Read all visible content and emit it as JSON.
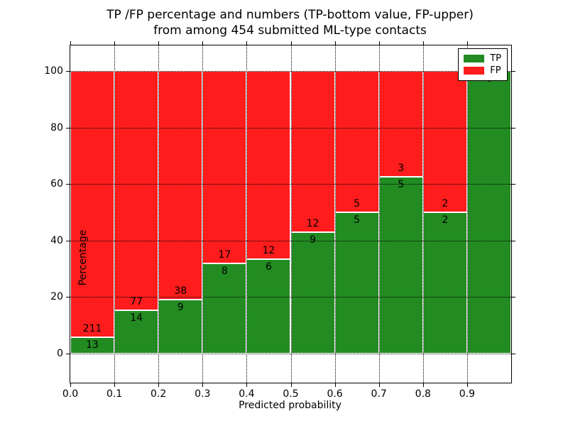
{
  "figure": {
    "title_line1": "TP /FP percentage and numbers (TP-bottom value, FP-upper)",
    "title_line2": "from among 454 submitted ML-type contacts"
  },
  "chart_data": {
    "type": "bar",
    "stacked": true,
    "units": "percent of bin total",
    "title": "TP /FP percentage and numbers (TP-bottom value, FP-upper)\nfrom among 454 submitted ML-type contacts",
    "xlabel": "Predicted probability",
    "ylabel": "Percentage",
    "total_contacts": 454,
    "categories": [
      "0.0-0.1",
      "0.1-0.2",
      "0.2-0.3",
      "0.3-0.4",
      "0.4-0.5",
      "0.5-0.6",
      "0.6-0.7",
      "0.7-0.8",
      "0.8-0.9",
      "0.9-1.0"
    ],
    "bin_width": 0.1,
    "series": [
      {
        "name": "TP",
        "color": "#228b22",
        "counts": [
          13,
          14,
          9,
          8,
          6,
          9,
          5,
          5,
          2,
          6
        ],
        "pct": [
          5.8,
          15.38,
          19.15,
          32.0,
          33.33,
          42.86,
          50.0,
          62.5,
          50.0,
          100.0
        ]
      },
      {
        "name": "FP",
        "color": "#ff1c1c",
        "counts": [
          211,
          77,
          38,
          17,
          12,
          12,
          5,
          3,
          2,
          0
        ],
        "pct": [
          94.2,
          84.62,
          80.85,
          68.0,
          66.67,
          57.14,
          50.0,
          37.5,
          50.0,
          0.0
        ]
      }
    ],
    "label_note": "TP count printed below TP/FP boundary, FP count printed above it",
    "xlim": [
      0.0,
      1.0
    ],
    "ylim": [
      -10.3,
      109.0
    ],
    "xticks": [
      0.0,
      0.1,
      0.2,
      0.3,
      0.4,
      0.5,
      0.6,
      0.7,
      0.8,
      0.9
    ],
    "xtick_labels": [
      "0.0",
      "0.1",
      "0.2",
      "0.3",
      "0.4",
      "0.5",
      "0.6",
      "0.7",
      "0.8",
      "0.9"
    ],
    "yticks": [
      0,
      20,
      40,
      60,
      80,
      100
    ],
    "ytick_labels": [
      "0",
      "20",
      "40",
      "60",
      "80",
      "100"
    ],
    "grid": true,
    "grid_style": "dotted black, drawn over bars; bar edges white",
    "legend": {
      "position": "upper-right",
      "entries": [
        {
          "label": "TP",
          "color": "#228b22"
        },
        {
          "label": "FP",
          "color": "#ff1c1c"
        }
      ]
    }
  }
}
